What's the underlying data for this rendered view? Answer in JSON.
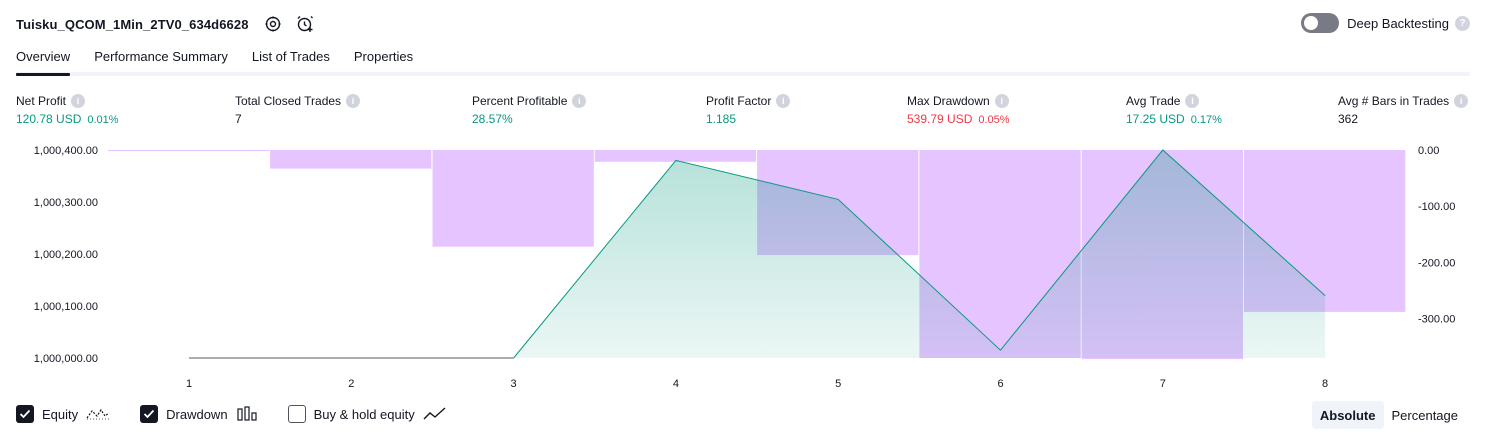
{
  "header": {
    "strategy_name": "Tuisku_QCOM_1Min_2TV0_634d6628",
    "settings_icon": "gear-icon",
    "add_alert_icon": "alarm-plus-icon",
    "deep_backtesting_label": "Deep Backtesting",
    "deep_backtesting_enabled": false
  },
  "tabs": [
    {
      "label": "Overview",
      "active": true
    },
    {
      "label": "Performance Summary",
      "active": false
    },
    {
      "label": "List of Trades",
      "active": false
    },
    {
      "label": "Properties",
      "active": false
    }
  ],
  "stats": [
    {
      "label": "Net Profit",
      "value": "120.78 USD",
      "pct": "0.01%",
      "color": "#089981"
    },
    {
      "label": "Total Closed Trades",
      "value": "7",
      "pct": "",
      "color": "#131722"
    },
    {
      "label": "Percent Profitable",
      "value": "28.57%",
      "pct": "",
      "color": "#089981"
    },
    {
      "label": "Profit Factor",
      "value": "1.185",
      "pct": "",
      "color": "#089981"
    },
    {
      "label": "Max Drawdown",
      "value": "539.79 USD",
      "pct": "0.05%",
      "color": "#f23645"
    },
    {
      "label": "Avg Trade",
      "value": "17.25 USD",
      "pct": "0.17%",
      "color": "#089981"
    },
    {
      "label": "Avg # Bars in Trades",
      "value": "362",
      "pct": "",
      "color": "#131722"
    }
  ],
  "chart_data": {
    "type": "area",
    "categories": [
      "1",
      "2",
      "3",
      "4",
      "5",
      "6",
      "7",
      "8"
    ],
    "left_axis": {
      "ticks": [
        "1,000,400.00",
        "1,000,300.00",
        "1,000,200.00",
        "1,000,100.00",
        "1,000,000.00"
      ],
      "range": [
        1000000,
        1000400
      ]
    },
    "right_axis": {
      "ticks": [
        "0.00",
        "-100.00",
        "-200.00",
        "-300.00"
      ],
      "range": [
        -370,
        0
      ]
    },
    "series": [
      {
        "name": "Equity",
        "type": "area",
        "axis": "left",
        "color": "#089981",
        "points": [
          {
            "x": 1,
            "y": 1000000
          },
          {
            "x": 3,
            "y": 1000000
          },
          {
            "x": 4,
            "y": 1000380
          },
          {
            "x": 5,
            "y": 1000305
          },
          {
            "x": 6,
            "y": 1000015
          },
          {
            "x": 7,
            "y": 1000400
          },
          {
            "x": 8,
            "y": 1000120
          }
        ]
      },
      {
        "name": "Drawdown",
        "type": "bar",
        "axis": "right",
        "color": "#c77dff",
        "values": [
          -2,
          -33,
          -172,
          -21,
          -187,
          -370,
          -372,
          -288
        ]
      }
    ]
  },
  "legend": {
    "equity_label": "Equity",
    "equity_checked": true,
    "drawdown_label": "Drawdown",
    "drawdown_checked": true,
    "buyhold_label": "Buy & hold equity",
    "buyhold_checked": false
  },
  "mode": {
    "absolute_label": "Absolute",
    "percentage_label": "Percentage",
    "active": "absolute"
  }
}
